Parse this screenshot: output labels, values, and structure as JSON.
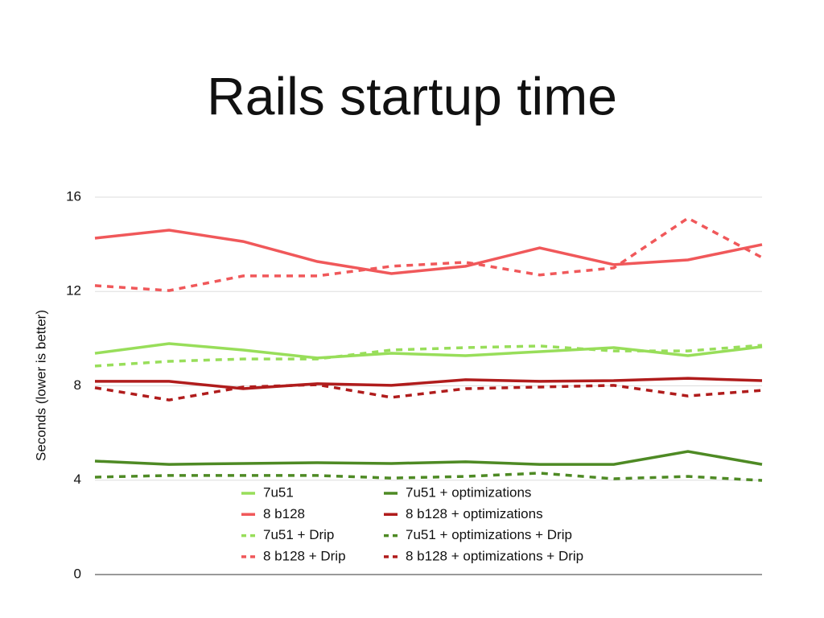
{
  "chart_data": {
    "type": "line",
    "title": "Rails startup time",
    "y_label": "Seconds (lower is better)",
    "categories": [
      null,
      null,
      null,
      null,
      null,
      null,
      null,
      null,
      null,
      null
    ],
    "ylim": [
      0,
      16
    ],
    "yticks": [
      0,
      4,
      8,
      12,
      16
    ],
    "grid": true,
    "series": [
      {
        "name": "7u51",
        "color": "#98de5a",
        "dashed": false,
        "values": [
          9.38,
          9.79,
          9.52,
          9.18,
          9.38,
          9.28,
          9.45,
          9.62,
          9.28,
          9.66
        ]
      },
      {
        "name": "8 b128",
        "color": "#f0585a",
        "dashed": false,
        "values": [
          14.26,
          14.6,
          14.12,
          13.27,
          12.76,
          13.07,
          13.85,
          13.14,
          13.34,
          13.99
        ]
      },
      {
        "name": "7u51 + Drip",
        "color": "#98de5a",
        "dashed": true,
        "values": [
          8.84,
          9.04,
          9.14,
          9.14,
          9.52,
          9.62,
          9.69,
          9.48,
          9.48,
          9.72
        ]
      },
      {
        "name": "8 b128 + Drip",
        "color": "#f0585a",
        "dashed": true,
        "values": [
          12.25,
          12.04,
          12.66,
          12.66,
          13.07,
          13.24,
          12.7,
          13.0,
          15.11,
          13.44
        ]
      },
      {
        "name": "7u51 + optimizations",
        "color": "#4e8a24",
        "dashed": false,
        "values": [
          4.81,
          4.67,
          4.71,
          4.74,
          4.71,
          4.78,
          4.67,
          4.67,
          5.22,
          4.67
        ]
      },
      {
        "name": "8 b128 + optimizations",
        "color": "#b01c1c",
        "dashed": false,
        "values": [
          8.19,
          8.19,
          7.88,
          8.09,
          8.02,
          8.26,
          8.19,
          8.22,
          8.32,
          8.22
        ]
      },
      {
        "name": "7u51 + optimizations + Drip",
        "color": "#4e8a24",
        "dashed": true,
        "values": [
          4.13,
          4.2,
          4.2,
          4.2,
          4.09,
          4.16,
          4.3,
          4.06,
          4.16,
          3.99
        ]
      },
      {
        "name": "8 b128 + optimizations + Drip",
        "color": "#b01c1c",
        "dashed": true,
        "values": [
          7.92,
          7.4,
          7.95,
          8.05,
          7.51,
          7.88,
          7.95,
          8.02,
          7.57,
          7.81
        ]
      }
    ]
  }
}
